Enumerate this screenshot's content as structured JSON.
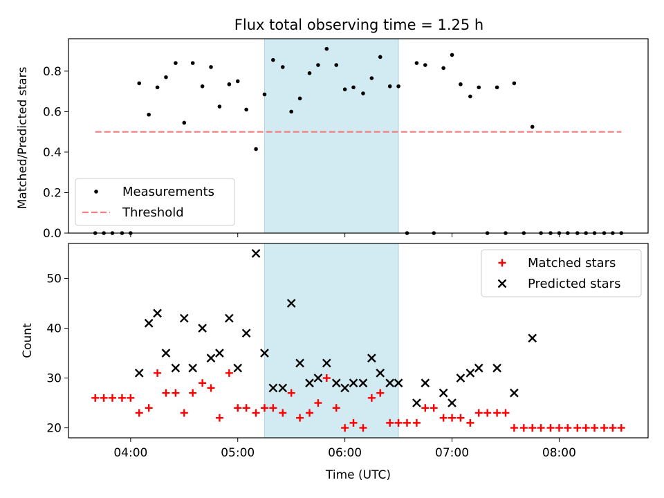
{
  "chart_data": [
    {
      "type": "scatter",
      "title": "Flux total observing time = 1.25 h",
      "ylabel": "Matched/Predicted stars",
      "xlabel": "",
      "x_unit": "hour_utc",
      "xlim": [
        3.42,
        8.83
      ],
      "ylim": [
        0.0,
        0.96
      ],
      "yticks": [
        0.0,
        0.2,
        0.4,
        0.6,
        0.8
      ],
      "ytick_labels": [
        "0.0",
        "0.2",
        "0.4",
        "0.6",
        "0.8"
      ],
      "grid": false,
      "legend": "bottom-left",
      "shaded_band": {
        "x": [
          5.25,
          6.5
        ],
        "color": "#add8e6"
      },
      "series": [
        {
          "name": "Measurements",
          "marker": "dot",
          "color": "#000000",
          "x": [
            3.67,
            3.75,
            3.83,
            3.92,
            4.0,
            4.08,
            4.17,
            4.25,
            4.33,
            4.42,
            4.5,
            4.58,
            4.67,
            4.75,
            4.83,
            4.92,
            5.0,
            5.08,
            5.17,
            5.25,
            5.33,
            5.42,
            5.5,
            5.58,
            5.67,
            5.75,
            5.83,
            5.92,
            6.0,
            6.08,
            6.17,
            6.25,
            6.33,
            6.42,
            6.5,
            6.58,
            6.67,
            6.75,
            6.83,
            6.92,
            7.0,
            7.08,
            7.17,
            7.25,
            7.33,
            7.42,
            7.5,
            7.58,
            7.67,
            7.75,
            7.83,
            7.92,
            8.0,
            8.08,
            8.17,
            8.25,
            8.33,
            8.42,
            8.5,
            8.58
          ],
          "y": [
            0.0,
            0.0,
            0.0,
            0.0,
            0.0,
            0.74,
            0.585,
            0.72,
            0.77,
            0.84,
            0.545,
            0.84,
            0.725,
            0.82,
            0.625,
            0.735,
            0.75,
            0.61,
            0.415,
            0.685,
            0.855,
            0.82,
            0.6,
            0.665,
            0.79,
            0.83,
            0.91,
            0.83,
            0.71,
            0.72,
            0.69,
            0.765,
            0.87,
            0.725,
            0.725,
            0.0,
            0.84,
            0.83,
            0.0,
            0.815,
            0.88,
            0.735,
            0.675,
            0.72,
            0.0,
            0.72,
            0.0,
            0.74,
            0.0,
            0.525,
            0.0,
            0.0,
            0.0,
            0.0,
            0.0,
            0.0,
            0.0,
            0.0,
            0.0,
            0.0
          ]
        },
        {
          "name": "Threshold",
          "marker": "dashed-line",
          "color": "#f08080",
          "x": [
            3.67,
            8.58
          ],
          "y": [
            0.5,
            0.5
          ]
        }
      ]
    },
    {
      "type": "scatter",
      "title": "",
      "ylabel": "Count",
      "xlabel": "Time (UTC)",
      "x_unit": "hour_utc",
      "xlim": [
        3.42,
        8.83
      ],
      "ylim": [
        18.0,
        57.0
      ],
      "yticks": [
        20,
        30,
        40,
        50
      ],
      "ytick_labels": [
        "20",
        "30",
        "40",
        "50"
      ],
      "xticks": [
        4,
        5,
        6,
        7,
        8
      ],
      "xtick_labels": [
        "04:00",
        "05:00",
        "06:00",
        "07:00",
        "08:00"
      ],
      "grid": false,
      "legend": "top-right",
      "shaded_band": {
        "x": [
          5.25,
          6.5
        ],
        "color": "#add8e6"
      },
      "series": [
        {
          "name": "Matched stars",
          "marker": "plus",
          "color": "#ff0000",
          "x": [
            3.67,
            3.75,
            3.83,
            3.92,
            4.0,
            4.08,
            4.17,
            4.25,
            4.33,
            4.42,
            4.5,
            4.58,
            4.67,
            4.75,
            4.83,
            4.92,
            5.0,
            5.08,
            5.17,
            5.25,
            5.33,
            5.42,
            5.5,
            5.58,
            5.67,
            5.75,
            5.83,
            5.92,
            6.0,
            6.08,
            6.17,
            6.25,
            6.33,
            6.42,
            6.5,
            6.58,
            6.67,
            6.75,
            6.83,
            6.92,
            7.0,
            7.08,
            7.17,
            7.25,
            7.33,
            7.42,
            7.5,
            7.58,
            7.67,
            7.75,
            7.83,
            7.92,
            8.0,
            8.08,
            8.17,
            8.25,
            8.33,
            8.42,
            8.5,
            8.58
          ],
          "y": [
            26,
            26,
            26,
            26,
            26,
            23,
            24,
            31,
            27,
            27,
            23,
            27,
            29,
            28,
            22,
            31,
            24,
            24,
            23,
            24,
            24,
            23,
            27,
            22,
            23,
            25,
            30,
            24,
            20,
            21,
            20,
            26,
            27,
            21,
            21,
            21,
            21,
            24,
            24,
            22,
            22,
            22,
            21,
            23,
            23,
            23,
            23,
            20,
            20,
            20,
            20,
            20,
            20,
            20,
            20,
            20,
            20,
            20,
            20,
            20
          ]
        },
        {
          "name": "Predicted stars",
          "marker": "x",
          "color": "#000000",
          "x": [
            4.08,
            4.17,
            4.25,
            4.33,
            4.42,
            4.5,
            4.58,
            4.67,
            4.75,
            4.83,
            4.92,
            5.0,
            5.08,
            5.17,
            5.25,
            5.33,
            5.42,
            5.5,
            5.58,
            5.67,
            5.75,
            5.83,
            5.92,
            6.0,
            6.08,
            6.17,
            6.25,
            6.33,
            6.42,
            6.5,
            6.67,
            6.75,
            6.92,
            7.0,
            7.08,
            7.17,
            7.25,
            7.42,
            7.58,
            7.75
          ],
          "y": [
            31,
            41,
            43,
            35,
            32,
            42,
            32,
            40,
            34,
            35,
            42,
            32,
            39,
            55,
            35,
            28,
            28,
            45,
            33,
            29,
            30,
            33,
            29,
            28,
            29,
            29,
            34,
            31,
            29,
            29,
            25,
            29,
            27,
            25,
            30,
            31,
            32,
            32,
            27,
            38
          ]
        }
      ]
    }
  ]
}
